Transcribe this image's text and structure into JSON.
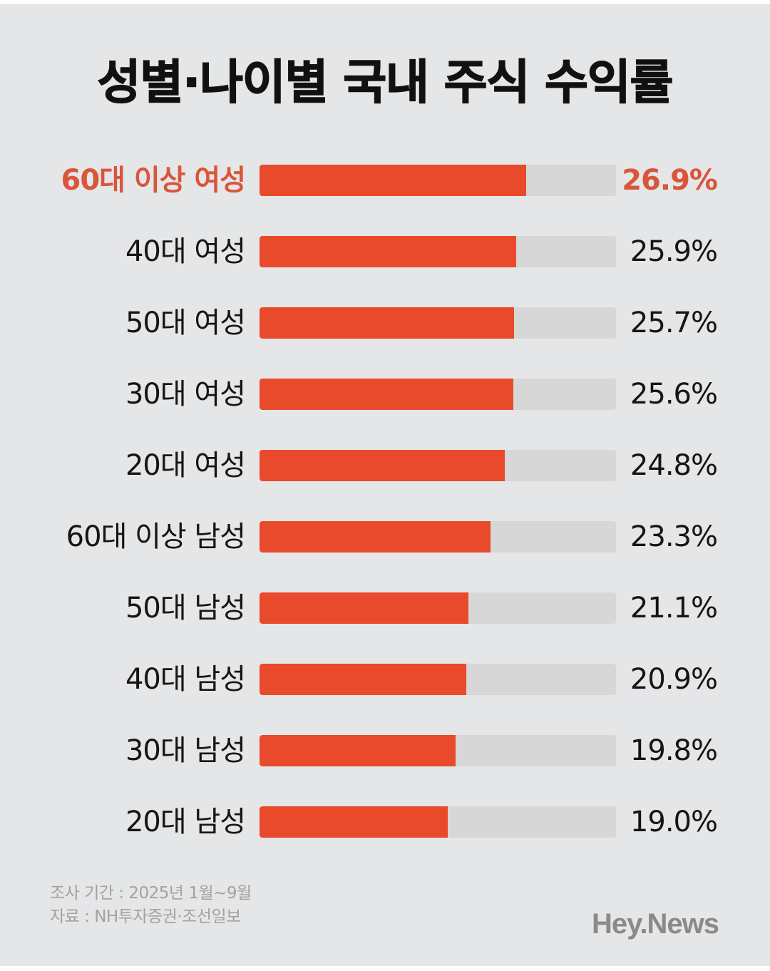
{
  "title": "성별·나이별 국내 주식 수익률",
  "colors": {
    "background": "#E5E6E8",
    "bar_fill": "#E84A2B",
    "bar_track": "#D7D7D7",
    "highlight_text": "#D9563B",
    "text": "#151515",
    "footer_text": "#A2A2A2",
    "brand_text": "#8A8A8A"
  },
  "rows": [
    {
      "label": "60대 이상 여성",
      "value": 26.9,
      "display": "26.9%",
      "highlight": true
    },
    {
      "label": "40대 여성",
      "value": 25.9,
      "display": "25.9%",
      "highlight": false
    },
    {
      "label": "50대 여성",
      "value": 25.7,
      "display": "25.7%",
      "highlight": false
    },
    {
      "label": "30대 여성",
      "value": 25.6,
      "display": "25.6%",
      "highlight": false
    },
    {
      "label": "20대 여성",
      "value": 24.8,
      "display": "24.8%",
      "highlight": false
    },
    {
      "label": "60대 이상 남성",
      "value": 23.3,
      "display": "23.3%",
      "highlight": false
    },
    {
      "label": "50대 남성",
      "value": 21.1,
      "display": "21.1%",
      "highlight": false
    },
    {
      "label": "40대 남성",
      "value": 20.9,
      "display": "20.9%",
      "highlight": false
    },
    {
      "label": "30대 남성",
      "value": 19.8,
      "display": "19.8%",
      "highlight": false
    },
    {
      "label": "20대 남성",
      "value": 19.0,
      "display": "19.0%",
      "highlight": false
    }
  ],
  "footer": {
    "period": "조사 기간 : 2025년 1월~9월",
    "source": "자료 : NH투자증권·조선일보"
  },
  "brand": "Hey.News",
  "chart_data": {
    "type": "bar",
    "orientation": "horizontal",
    "title": "성별·나이별 국내 주식 수익률",
    "categories": [
      "60대 이상 여성",
      "40대 여성",
      "50대 여성",
      "30대 여성",
      "20대 여성",
      "60대 이상 남성",
      "50대 남성",
      "40대 남성",
      "30대 남성",
      "20대 남성"
    ],
    "values": [
      26.9,
      25.9,
      25.7,
      25.6,
      24.8,
      23.3,
      21.1,
      20.9,
      19.8,
      19.0
    ],
    "value_labels": [
      "26.9%",
      "25.9%",
      "25.7%",
      "25.6%",
      "24.8%",
      "23.3%",
      "21.1%",
      "20.9%",
      "19.8%",
      "19.0%"
    ],
    "unit": "%",
    "xlabel": "",
    "ylabel": "",
    "xlim": [
      0,
      36
    ],
    "grid": false,
    "legend": null,
    "highlighted_category": "60대 이상 여성",
    "annotations": [
      "조사 기간 : 2025년 1월~9월",
      "자료 : NH투자증권·조선일보"
    ]
  }
}
